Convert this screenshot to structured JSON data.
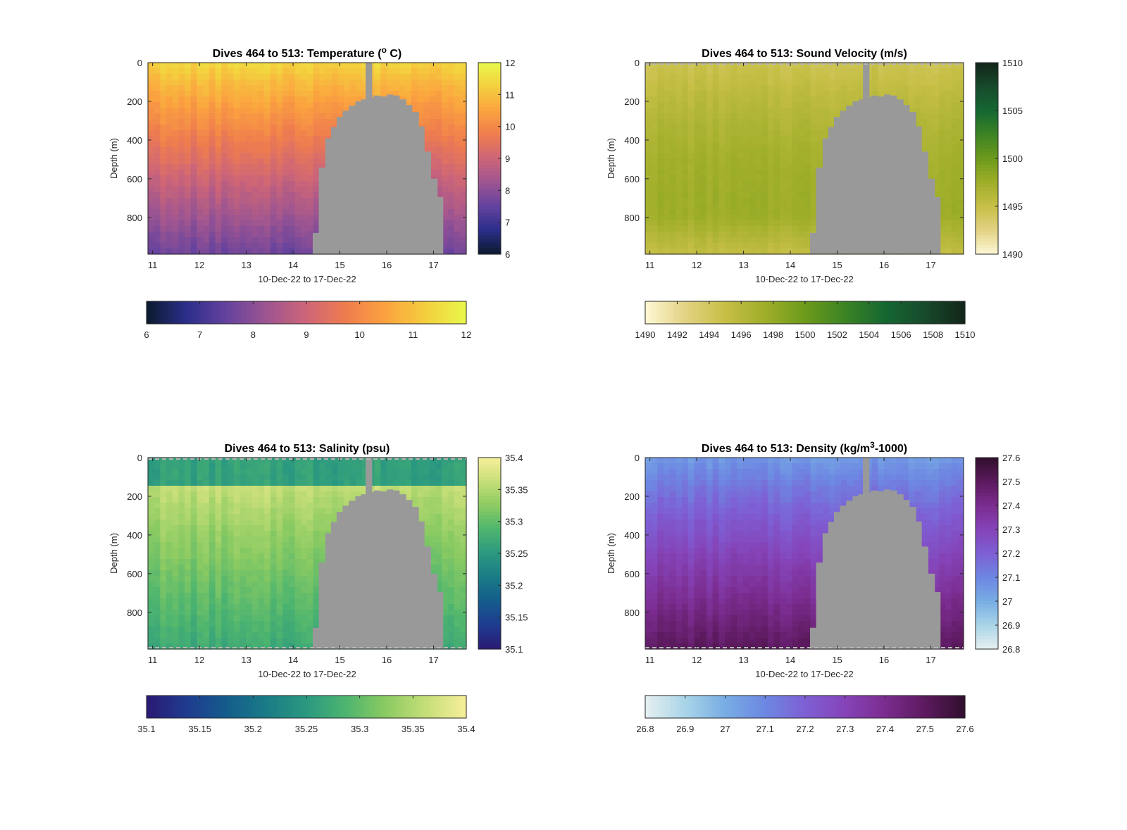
{
  "figure": {
    "background": "#ffffff",
    "land_color": "#999999",
    "axis_color": "#262626"
  },
  "chart_data": [
    {
      "type": "heatmap",
      "title": "Dives 464 to 513: Temperature (° C)",
      "title_parts": [
        "Dives 464 to 513: Temperature (",
        "o",
        " C)"
      ],
      "xlabel": "10-Dec-22 to 17-Dec-22",
      "ylabel": "Depth (m)",
      "xlim": [
        10.9,
        17.7
      ],
      "ylim": [
        990,
        0
      ],
      "x_ticks": [
        11,
        12,
        13,
        14,
        15,
        16,
        17
      ],
      "y_ticks": [
        0,
        200,
        400,
        600,
        800
      ],
      "colormap": [
        "#0c1a2e",
        "#2b2e8a",
        "#64429e",
        "#9d5591",
        "#cd6578",
        "#ef7d4e",
        "#fba33f",
        "#f4cf3e",
        "#e8f94c"
      ],
      "clim": [
        6,
        12
      ],
      "vertical_colorbar_ticks": [
        6,
        7,
        8,
        9,
        10,
        11,
        12
      ],
      "horizontal_colorbar_ticks": [
        6,
        7,
        8,
        9,
        10,
        11,
        12
      ],
      "surface_value": 11.4,
      "bottom_value": 7.6,
      "gradient_shape": "smooth",
      "stripe_amplitude": 0.25,
      "dashed_rule_at_top": false,
      "dashed_rule_at_bottom": false
    },
    {
      "type": "heatmap",
      "title": "Dives 464 to 513: Sound Velocity (m/s)",
      "title_parts": [
        "Dives 464 to 513: Sound Velocity (m/s)"
      ],
      "xlabel": "10-Dec-22 to 17-Dec-22",
      "ylabel": "Depth (m)",
      "xlim": [
        10.9,
        17.7
      ],
      "ylim": [
        990,
        0
      ],
      "x_ticks": [
        11,
        12,
        13,
        14,
        15,
        16,
        17
      ],
      "y_ticks": [
        0,
        200,
        400,
        600,
        800
      ],
      "colormap": [
        "#fdf8d6",
        "#e3d283",
        "#c6bf46",
        "#9fae29",
        "#6c9a1b",
        "#3c8324",
        "#156732",
        "#174a2b",
        "#12251a"
      ],
      "clim": [
        1490,
        1510
      ],
      "vertical_colorbar_ticks": [
        1490,
        1495,
        1500,
        1505,
        1510
      ],
      "horizontal_colorbar_ticks": [
        1490,
        1492,
        1494,
        1496,
        1498,
        1500,
        1502,
        1504,
        1506,
        1508,
        1510
      ],
      "surface_value": 1494.5,
      "bottom_value": 1497.5,
      "gradient_shape": "dip",
      "stripe_amplitude": 0.5,
      "dashed_rule_at_top": true,
      "dashed_rule_at_bottom": false
    },
    {
      "type": "heatmap",
      "title": "Dives 464 to 513: Salinity (psu)",
      "title_parts": [
        "Dives 464 to 513: Salinity (psu)"
      ],
      "xlabel": "10-Dec-22 to 17-Dec-22",
      "ylabel": "Depth (m)",
      "xlim": [
        10.9,
        17.7
      ],
      "ylim": [
        990,
        0
      ],
      "x_ticks": [
        11,
        12,
        13,
        14,
        15,
        16,
        17
      ],
      "y_ticks": [
        0,
        200,
        400,
        600,
        800
      ],
      "colormap": [
        "#2b1a73",
        "#1f3b8f",
        "#145c8c",
        "#1a7b86",
        "#2b9980",
        "#4eb56f",
        "#8ccb62",
        "#c6de78",
        "#f7ef9c"
      ],
      "clim": [
        35.1,
        35.4
      ],
      "vertical_colorbar_ticks": [
        35.1,
        35.15,
        35.2,
        35.25,
        35.3,
        35.35,
        35.4
      ],
      "horizontal_colorbar_ticks": [
        35.1,
        35.15,
        35.2,
        35.25,
        35.3,
        35.35,
        35.4
      ],
      "surface_value": 35.26,
      "bottom_value": 35.27,
      "gradient_shape": "mid-peak",
      "stripe_amplitude": 0.015,
      "dashed_rule_at_top": true,
      "dashed_rule_at_bottom": true
    },
    {
      "type": "heatmap",
      "title": "Dives 464 to 513: Density (kg/m³-1000)",
      "title_parts": [
        "Dives 464 to 513: Density (kg/m",
        "3",
        "-1000)"
      ],
      "xlabel": "10-Dec-22 to 17-Dec-22",
      "ylabel": "Depth (m)",
      "xlim": [
        10.9,
        17.7
      ],
      "ylim": [
        990,
        0
      ],
      "x_ticks": [
        11,
        12,
        13,
        14,
        15,
        16,
        17
      ],
      "y_ticks": [
        0,
        200,
        400,
        600,
        800
      ],
      "colormap": [
        "#e6f0f0",
        "#a9d4e8",
        "#78ade4",
        "#6d87e2",
        "#7e5fd4",
        "#8544b8",
        "#7b2c8f",
        "#5c1a5e",
        "#300f2d"
      ],
      "clim": [
        26.8,
        27.6
      ],
      "vertical_colorbar_ticks": [
        26.8,
        26.9,
        27,
        27.1,
        27.2,
        27.3,
        27.4,
        27.5,
        27.6
      ],
      "horizontal_colorbar_ticks": [
        26.8,
        26.9,
        27,
        27.1,
        27.2,
        27.3,
        27.4,
        27.5,
        27.6
      ],
      "surface_value": 27.05,
      "bottom_value": 27.5,
      "gradient_shape": "smooth",
      "stripe_amplitude": 0.035,
      "dashed_rule_at_top": false,
      "dashed_rule_at_bottom": true
    }
  ]
}
